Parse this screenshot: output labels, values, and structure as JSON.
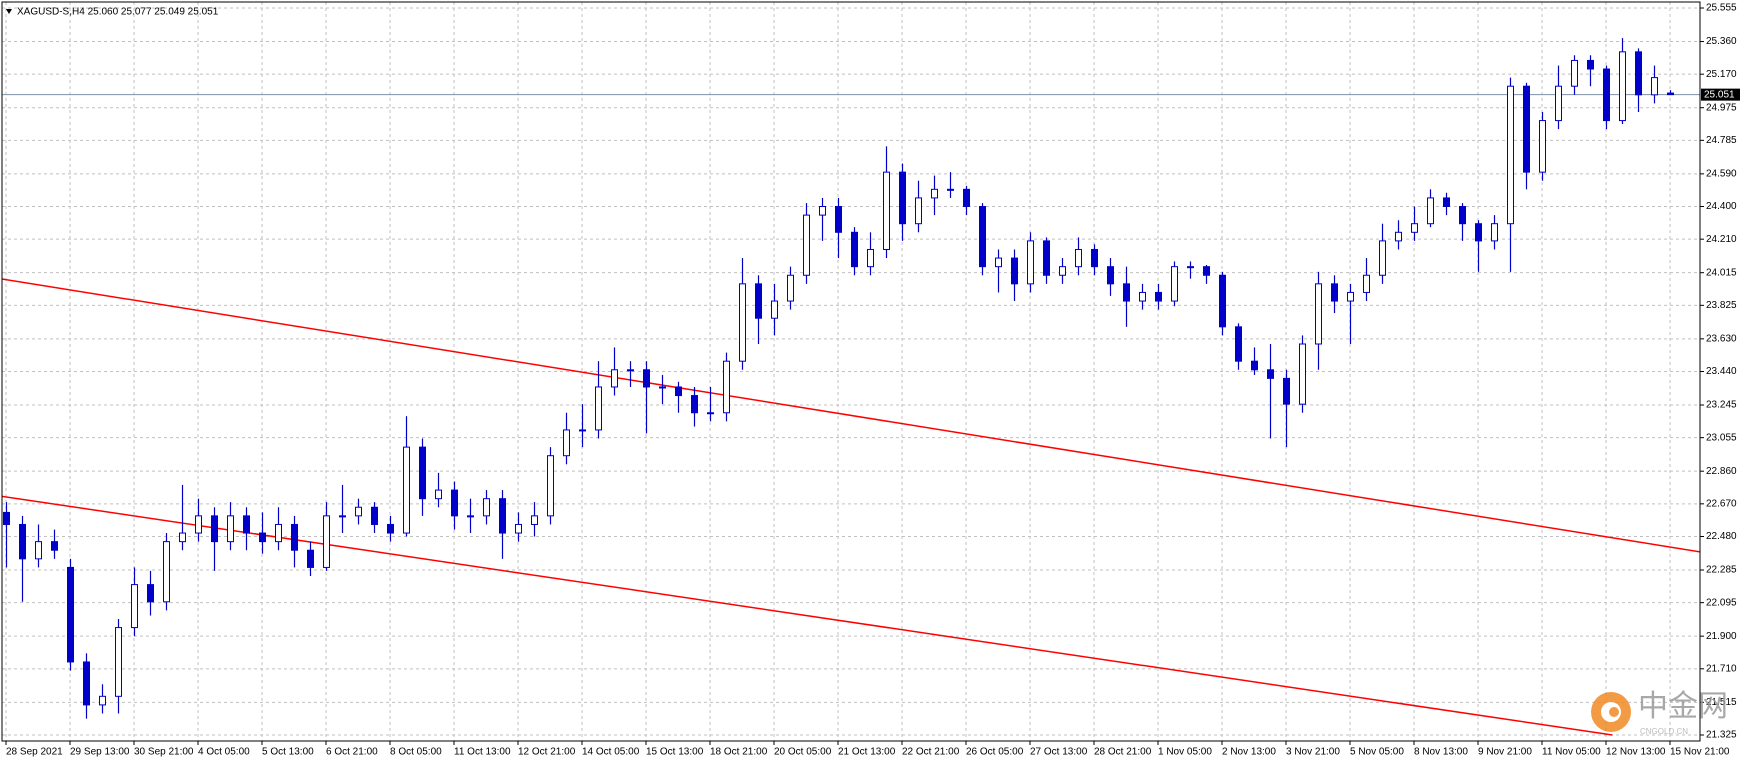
{
  "chart_data": {
    "type": "candlestick",
    "title": "XAGUSD-S,H4  25.060 25.077 25.049 25.051",
    "color": "#0000c8",
    "grid": true,
    "categories": [
      "28 Sep 2021",
      null,
      null,
      null,
      "29 Sep 13:00",
      null,
      null,
      null,
      "30 Sep 21:00",
      null,
      null,
      null,
      "4 Oct 05:00",
      null,
      null,
      null,
      "5 Oct 13:00",
      null,
      null,
      null,
      "6 Oct 21:00",
      null,
      null,
      null,
      "8 Oct 05:00",
      null,
      null,
      null,
      "11 Oct 13:00",
      null,
      null,
      null,
      "12 Oct 21:00",
      null,
      null,
      null,
      "14 Oct 05:00",
      null,
      null,
      null,
      "15 Oct 13:00",
      null,
      null,
      null,
      "18 Oct 21:00",
      null,
      null,
      null,
      "20 Oct 05:00",
      null,
      null,
      null,
      "21 Oct 13:00",
      null,
      null,
      null,
      "22 Oct 21:00",
      null,
      null,
      null,
      "26 Oct 05:00",
      null,
      null,
      null,
      "27 Oct 13:00",
      null,
      null,
      null,
      "28 Oct 21:00",
      null,
      null,
      null,
      "1 Nov 05:00",
      null,
      null,
      null,
      "2 Nov 13:00",
      null,
      null,
      null,
      "3 Nov 21:00",
      null,
      null,
      null,
      "5 Nov 05:00",
      null,
      null,
      null,
      "8 Nov 13:00",
      null,
      null,
      null,
      "9 Nov 21:00",
      null,
      null,
      null,
      "11 Nov 05:00",
      null,
      null,
      null,
      "12 Nov 13:00",
      null,
      null,
      null,
      "15 Nov 21:00"
    ],
    "ohlc": [
      [
        22.62,
        22.68,
        22.3,
        22.55
      ],
      [
        22.55,
        22.6,
        22.1,
        22.35
      ],
      [
        22.35,
        22.55,
        22.3,
        22.45
      ],
      [
        22.45,
        22.52,
        22.35,
        22.4
      ],
      [
        22.3,
        22.35,
        21.7,
        21.75
      ],
      [
        21.75,
        21.8,
        21.42,
        21.5
      ],
      [
        21.5,
        21.62,
        21.45,
        21.55
      ],
      [
        21.55,
        22.0,
        21.45,
        21.95
      ],
      [
        21.95,
        22.3,
        21.9,
        22.2
      ],
      [
        22.2,
        22.28,
        22.02,
        22.1
      ],
      [
        22.1,
        22.5,
        22.05,
        22.45
      ],
      [
        22.45,
        22.78,
        22.4,
        22.5
      ],
      [
        22.5,
        22.7,
        22.45,
        22.6
      ],
      [
        22.6,
        22.65,
        22.28,
        22.45
      ],
      [
        22.45,
        22.68,
        22.4,
        22.6
      ],
      [
        22.6,
        22.65,
        22.4,
        22.5
      ],
      [
        22.5,
        22.62,
        22.38,
        22.45
      ],
      [
        22.45,
        22.65,
        22.4,
        22.55
      ],
      [
        22.55,
        22.6,
        22.3,
        22.4
      ],
      [
        22.4,
        22.45,
        22.25,
        22.3
      ],
      [
        22.3,
        22.68,
        22.28,
        22.6
      ],
      [
        22.6,
        22.78,
        22.5,
        22.6
      ],
      [
        22.6,
        22.7,
        22.55,
        22.65
      ],
      [
        22.65,
        22.68,
        22.5,
        22.55
      ],
      [
        22.55,
        22.6,
        22.45,
        22.5
      ],
      [
        22.5,
        23.18,
        22.48,
        23.0
      ],
      [
        23.0,
        23.05,
        22.6,
        22.7
      ],
      [
        22.7,
        22.85,
        22.65,
        22.75
      ],
      [
        22.75,
        22.8,
        22.52,
        22.6
      ],
      [
        22.6,
        22.7,
        22.5,
        22.6
      ],
      [
        22.6,
        22.75,
        22.55,
        22.7
      ],
      [
        22.7,
        22.75,
        22.35,
        22.5
      ],
      [
        22.5,
        22.62,
        22.45,
        22.55
      ],
      [
        22.55,
        22.68,
        22.48,
        22.6
      ],
      [
        22.6,
        23.0,
        22.55,
        22.95
      ],
      [
        22.95,
        23.2,
        22.9,
        23.1
      ],
      [
        23.1,
        23.25,
        23.0,
        23.1
      ],
      [
        23.1,
        23.5,
        23.05,
        23.35
      ],
      [
        23.35,
        23.58,
        23.3,
        23.45
      ],
      [
        23.45,
        23.5,
        23.35,
        23.45
      ],
      [
        23.45,
        23.5,
        23.08,
        23.35
      ],
      [
        23.35,
        23.42,
        23.25,
        23.35
      ],
      [
        23.35,
        23.38,
        23.2,
        23.3
      ],
      [
        23.3,
        23.35,
        23.12,
        23.2
      ],
      [
        23.2,
        23.35,
        23.15,
        23.2
      ],
      [
        23.2,
        23.55,
        23.15,
        23.5
      ],
      [
        23.5,
        24.1,
        23.45,
        23.95
      ],
      [
        23.95,
        24.0,
        23.6,
        23.75
      ],
      [
        23.75,
        23.95,
        23.65,
        23.85
      ],
      [
        23.85,
        24.05,
        23.8,
        24.0
      ],
      [
        24.0,
        24.42,
        23.95,
        24.35
      ],
      [
        24.35,
        24.45,
        24.2,
        24.4
      ],
      [
        24.4,
        24.45,
        24.1,
        24.25
      ],
      [
        24.25,
        24.28,
        24.0,
        24.05
      ],
      [
        24.05,
        24.25,
        24.0,
        24.15
      ],
      [
        24.15,
        24.75,
        24.1,
        24.6
      ],
      [
        24.6,
        24.65,
        24.2,
        24.3
      ],
      [
        24.3,
        24.55,
        24.25,
        24.45
      ],
      [
        24.45,
        24.58,
        24.35,
        24.5
      ],
      [
        24.5,
        24.6,
        24.45,
        24.5
      ],
      [
        24.5,
        24.52,
        24.35,
        24.4
      ],
      [
        24.4,
        24.42,
        24.0,
        24.05
      ],
      [
        24.05,
        24.15,
        23.9,
        24.1
      ],
      [
        24.1,
        24.15,
        23.85,
        23.95
      ],
      [
        23.95,
        24.25,
        23.9,
        24.2
      ],
      [
        24.2,
        24.22,
        23.95,
        24.0
      ],
      [
        24.0,
        24.1,
        23.95,
        24.05
      ],
      [
        24.05,
        24.22,
        24.0,
        24.15
      ],
      [
        24.15,
        24.18,
        24.0,
        24.05
      ],
      [
        24.05,
        24.1,
        23.88,
        23.95
      ],
      [
        23.95,
        24.05,
        23.7,
        23.85
      ],
      [
        23.85,
        23.95,
        23.8,
        23.9
      ],
      [
        23.9,
        23.95,
        23.8,
        23.85
      ],
      [
        23.85,
        24.08,
        23.82,
        24.05
      ],
      [
        24.05,
        24.08,
        23.98,
        24.05
      ],
      [
        24.05,
        24.06,
        23.95,
        24.0
      ],
      [
        24.0,
        24.02,
        23.65,
        23.7
      ],
      [
        23.7,
        23.72,
        23.45,
        23.5
      ],
      [
        23.5,
        23.58,
        23.42,
        23.45
      ],
      [
        23.45,
        23.6,
        23.05,
        23.4
      ],
      [
        23.4,
        23.45,
        23.0,
        23.25
      ],
      [
        23.25,
        23.65,
        23.2,
        23.6
      ],
      [
        23.6,
        24.02,
        23.45,
        23.95
      ],
      [
        23.95,
        24.0,
        23.78,
        23.85
      ],
      [
        23.85,
        23.95,
        23.6,
        23.9
      ],
      [
        23.9,
        24.1,
        23.85,
        24.0
      ],
      [
        24.0,
        24.3,
        23.95,
        24.2
      ],
      [
        24.2,
        24.32,
        24.15,
        24.25
      ],
      [
        24.25,
        24.4,
        24.2,
        24.3
      ],
      [
        24.3,
        24.5,
        24.28,
        24.45
      ],
      [
        24.45,
        24.48,
        24.35,
        24.4
      ],
      [
        24.4,
        24.42,
        24.2,
        24.3
      ],
      [
        24.3,
        24.32,
        24.02,
        24.2
      ],
      [
        24.2,
        24.35,
        24.15,
        24.3
      ],
      [
        24.3,
        25.15,
        24.02,
        25.1
      ],
      [
        25.1,
        25.12,
        24.5,
        24.6
      ],
      [
        24.6,
        24.95,
        24.55,
        24.9
      ],
      [
        24.9,
        25.22,
        24.85,
        25.1
      ],
      [
        25.1,
        25.28,
        25.05,
        25.25
      ],
      [
        25.25,
        25.28,
        25.1,
        25.2
      ],
      [
        25.2,
        25.22,
        24.85,
        24.9
      ],
      [
        24.9,
        25.38,
        24.88,
        25.3
      ],
      [
        25.3,
        25.32,
        24.95,
        25.05
      ],
      [
        25.05,
        25.22,
        25.0,
        25.15
      ],
      [
        25.06,
        25.077,
        25.049,
        25.051
      ]
    ],
    "ylim": [
      21.29,
      25.59
    ],
    "yticks": [
      25.555,
      {
        "value": 25.36,
        "label": "25.360"
      },
      {
        "value": 25.17,
        "label": "25.170"
      },
      24.975,
      24.785,
      {
        "value": 24.59,
        "label": "24.590"
      },
      {
        "value": 24.4,
        "label": "24.400"
      },
      {
        "value": 24.21,
        "label": "24.210"
      },
      24.015,
      23.825,
      {
        "value": 23.63,
        "label": "23.630"
      },
      {
        "value": 23.44,
        "label": "23.440"
      },
      23.245,
      23.055,
      {
        "value": 22.86,
        "label": "22.860"
      },
      {
        "value": 22.67,
        "label": "22.670"
      },
      {
        "value": 22.48,
        "label": "22.480"
      },
      22.285,
      22.095,
      {
        "value": 21.9,
        "label": "21.900"
      },
      {
        "value": 21.71,
        "label": "21.710"
      },
      21.515,
      21.325
    ],
    "last_price": 25.051,
    "trendlines": [
      {
        "color": "#ff0000",
        "points": [
          [
            -0.35,
            23.98
          ],
          [
            105.9,
            22.39
          ]
        ]
      },
      {
        "color": "#ff0000",
        "points": [
          [
            -0.35,
            22.715
          ],
          [
            100.4,
            21.325
          ]
        ]
      }
    ],
    "watermark": {
      "text": "中金网",
      "sub": "CNGOLD.CN"
    }
  }
}
